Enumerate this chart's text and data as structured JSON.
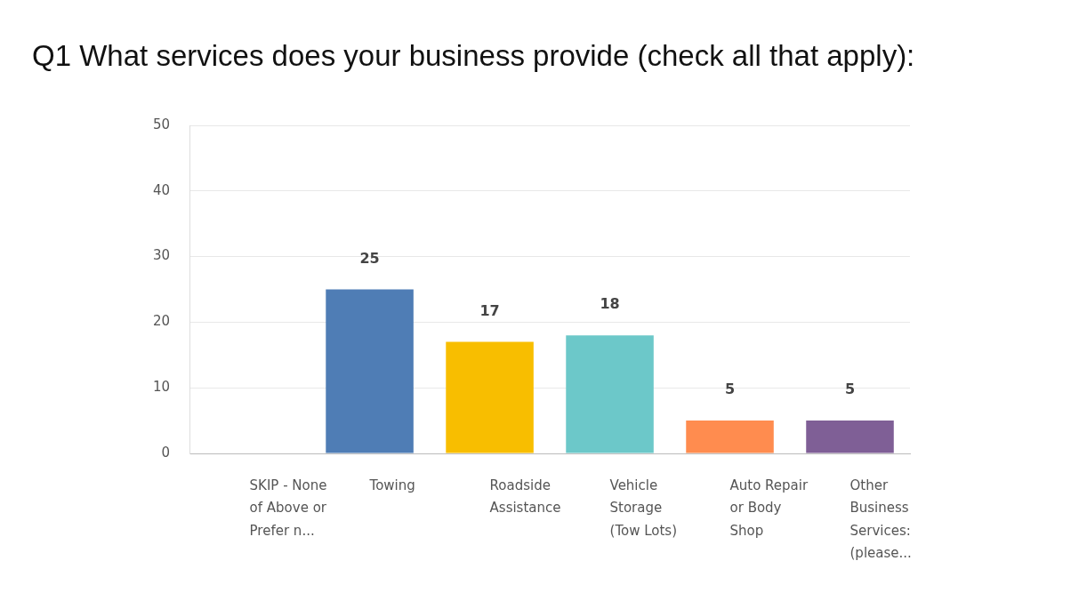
{
  "chart_data": {
    "type": "bar",
    "title": "Q1 What services does your business provide (check all that apply):",
    "categories": [
      "SKIP - None of Above or Prefer n...",
      "Towing",
      "Roadside Assistance",
      "Vehicle Storage (Tow Lots)",
      "Auto Repair or Body Shop",
      "Other Business Services: (please..."
    ],
    "values": [
      0,
      25,
      17,
      18,
      5,
      5
    ],
    "colors": [
      "#4f7db5",
      "#4f7db5",
      "#f8be00",
      "#6cc8c9",
      "#ff8c4f",
      "#7f5f96"
    ],
    "value_labels": [
      null,
      "25",
      "17",
      "18",
      "5",
      "5"
    ],
    "ylim": [
      0,
      50
    ],
    "yticks": [
      0,
      10,
      20,
      30,
      40,
      50
    ],
    "grid": "y",
    "legend": false
  }
}
